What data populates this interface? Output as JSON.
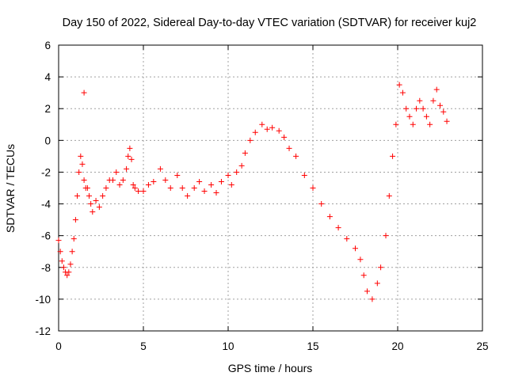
{
  "chart_data": {
    "type": "scatter",
    "title": "Day 150 of 2022, Sidereal Day-to-day VTEC variation (SDTVAR) for receiver kuj2",
    "xlabel": "GPS time / hours",
    "ylabel": "SDTVAR / TECUs",
    "xlim": [
      0,
      25
    ],
    "ylim": [
      -12,
      6
    ],
    "xticks": [
      0,
      5,
      10,
      15,
      20,
      25
    ],
    "yticks": [
      -12,
      -10,
      -8,
      -6,
      -4,
      -2,
      0,
      2,
      4,
      6
    ],
    "xtick_labels": [
      "0",
      "5",
      "10",
      "15",
      "20",
      "25"
    ],
    "ytick_labels": [
      "-12",
      "-10",
      "-8",
      "-6",
      "-4",
      "-2",
      "0",
      "2",
      "4",
      "6"
    ],
    "grid": true,
    "marker": "+",
    "color": "#ff0000",
    "outliers": [
      [
        1.5,
        3.0
      ]
    ],
    "series": [
      {
        "name": "SDTVAR",
        "x": [
          0.0,
          0.1,
          0.2,
          0.3,
          0.4,
          0.5,
          0.6,
          0.7,
          0.8,
          0.9,
          1.0,
          1.1,
          1.2,
          1.3,
          1.4,
          1.5,
          1.6,
          1.7,
          1.8,
          1.9,
          2.0,
          2.2,
          2.4,
          2.6,
          2.8,
          3.0,
          3.2,
          3.4,
          3.6,
          3.8,
          4.0,
          4.1,
          4.2,
          4.3,
          4.4,
          4.5,
          4.7,
          5.0,
          5.3,
          5.6,
          6.0,
          6.3,
          6.6,
          7.0,
          7.3,
          7.6,
          8.0,
          8.3,
          8.6,
          9.0,
          9.3,
          9.6,
          10.0,
          10.2,
          10.5,
          10.8,
          11.0,
          11.3,
          11.6,
          12.0,
          12.3,
          12.6,
          13.0,
          13.3,
          13.6,
          14.0,
          14.5,
          15.0,
          15.5,
          16.0,
          16.5,
          17.0,
          17.5,
          17.8,
          18.0,
          18.2,
          18.5,
          18.8,
          19.0,
          19.3,
          19.5,
          19.7,
          19.9,
          20.1,
          20.3,
          20.5,
          20.7,
          20.9,
          21.1,
          21.3,
          21.5,
          21.7,
          21.9,
          22.1,
          22.3,
          22.5,
          22.7,
          22.9
        ],
        "y": [
          -6.3,
          -7.0,
          -7.6,
          -8.0,
          -8.3,
          -8.5,
          -8.3,
          -7.8,
          -7.0,
          -6.2,
          -5.0,
          -3.5,
          -2.0,
          -1.0,
          -1.5,
          -2.5,
          -3.0,
          -3.0,
          -3.5,
          -4.0,
          -4.5,
          -3.8,
          -4.2,
          -3.5,
          -3.0,
          -2.5,
          -2.5,
          -2.0,
          -2.8,
          -2.5,
          -1.8,
          -1.0,
          -0.5,
          -1.2,
          -2.8,
          -3.0,
          -3.2,
          -3.2,
          -2.8,
          -2.6,
          -1.8,
          -2.5,
          -3.0,
          -2.2,
          -3.0,
          -3.5,
          -3.0,
          -2.6,
          -3.2,
          -2.8,
          -3.3,
          -2.6,
          -2.2,
          -2.8,
          -2.0,
          -1.6,
          -0.8,
          0.0,
          0.5,
          1.0,
          0.7,
          0.8,
          0.6,
          0.2,
          -0.5,
          -1.0,
          -2.2,
          -3.0,
          -4.0,
          -4.8,
          -5.5,
          -6.2,
          -6.8,
          -7.5,
          -8.5,
          -9.5,
          -10.0,
          -9.0,
          -8.0,
          -6.0,
          -3.5,
          -1.0,
          1.0,
          3.5,
          3.0,
          2.0,
          1.5,
          1.0,
          2.0,
          2.5,
          2.0,
          1.5,
          1.0,
          2.5,
          3.2,
          2.2,
          1.8,
          1.2
        ]
      }
    ]
  }
}
